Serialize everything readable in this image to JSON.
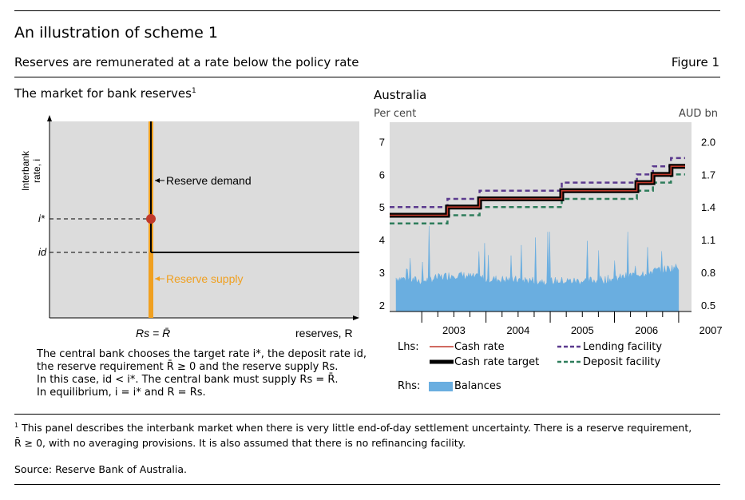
{
  "header": {
    "title": "An illustration of scheme 1",
    "subtitle": "Reserves are remunerated at a rate below the policy rate",
    "figure_label": "Figure 1"
  },
  "left_panel": {
    "title": "The market for bank reserves",
    "title_sup": "1",
    "y_axis_label_line1": "Interbank",
    "y_axis_label_line2": "rate, i",
    "istar_label": "i*",
    "id_label": "id",
    "reserve_demand_label": "Reserve demand",
    "reserve_supply_label": "Reserve supply",
    "rs_label": "Rs = R̄",
    "x_axis_label": "reserves, R",
    "demand_color": "#000000",
    "supply_color": "#f0a020",
    "equilibrium_color": "#c0392b",
    "caption_lines": [
      "The central bank chooses the target rate i*, the deposit rate id,",
      "the reserve requirement R̄ ≥ 0 and the reserve supply Rs.",
      "In this case, id < i*. The central bank must supply Rs = R̄.",
      "In equilibrium, i = i* and R = Rs."
    ]
  },
  "right_panel": {
    "title": "Australia",
    "left_unit": "Per cent",
    "right_unit": "AUD bn",
    "legend": {
      "lhs_label": "Lhs:",
      "rhs_label": "Rhs:",
      "items": [
        {
          "name": "Cash rate",
          "color": "#c0392b",
          "style": "thin"
        },
        {
          "name": "Cash rate target",
          "color": "#000000",
          "style": "thick"
        },
        {
          "name": "Lending facility",
          "color": "#5b3a8e",
          "style": "dashed"
        },
        {
          "name": "Deposit facility",
          "color": "#2e7d5b",
          "style": "dashed"
        },
        {
          "name": "Balances",
          "color": "#6aaee0",
          "style": "area"
        }
      ]
    }
  },
  "chart_data": {
    "type": "line",
    "title": "Australia",
    "x_range": [
      2002.5,
      2007.2
    ],
    "x_ticks": [
      "2003",
      "2004",
      "2005",
      "2006",
      "2007"
    ],
    "left_axis": {
      "label": "Per cent",
      "ticks": [
        2,
        3,
        4,
        5,
        6,
        7
      ],
      "range": [
        1.8,
        7.6
      ]
    },
    "right_axis": {
      "label": "AUD bn",
      "ticks": [
        "0.5",
        "0.8",
        "1.1",
        "1.4",
        "1.7",
        "2.0"
      ],
      "range": [
        0.5,
        2.0
      ]
    },
    "grid": true,
    "series": [
      {
        "name": "Cash rate target",
        "axis": "left",
        "x": [
          2002.5,
          2003.4,
          2003.4,
          2003.9,
          2003.9,
          2005.18,
          2005.18,
          2006.35,
          2006.35,
          2006.6,
          2006.6,
          2006.88,
          2006.88,
          2007.1
        ],
        "y": [
          4.75,
          4.75,
          5.0,
          5.0,
          5.25,
          5.25,
          5.5,
          5.5,
          5.75,
          5.75,
          6.0,
          6.0,
          6.25,
          6.25
        ]
      },
      {
        "name": "Cash rate",
        "axis": "left",
        "x": [
          2002.5,
          2003.4,
          2003.4,
          2003.9,
          2003.9,
          2005.18,
          2005.18,
          2006.35,
          2006.35,
          2006.6,
          2006.6,
          2006.88,
          2006.88,
          2007.1
        ],
        "y": [
          4.75,
          4.75,
          5.0,
          5.0,
          5.25,
          5.25,
          5.5,
          5.5,
          5.75,
          5.75,
          6.0,
          6.0,
          6.25,
          6.25
        ]
      },
      {
        "name": "Lending facility",
        "axis": "left",
        "x": [
          2002.5,
          2003.4,
          2003.4,
          2003.9,
          2003.9,
          2005.18,
          2005.18,
          2006.35,
          2006.35,
          2006.6,
          2006.6,
          2006.88,
          2006.88,
          2007.1
        ],
        "y": [
          5.0,
          5.0,
          5.25,
          5.25,
          5.5,
          5.5,
          5.75,
          5.75,
          6.0,
          6.0,
          6.25,
          6.25,
          6.5,
          6.5
        ]
      },
      {
        "name": "Deposit facility",
        "axis": "left",
        "x": [
          2002.5,
          2003.4,
          2003.4,
          2003.9,
          2003.9,
          2005.18,
          2005.18,
          2006.35,
          2006.35,
          2006.6,
          2006.6,
          2006.88,
          2006.88,
          2007.1
        ],
        "y": [
          4.5,
          4.5,
          4.75,
          4.75,
          5.0,
          5.0,
          5.25,
          5.25,
          5.5,
          5.5,
          5.75,
          5.75,
          6.0,
          6.0
        ]
      },
      {
        "name": "Balances",
        "axis": "right",
        "type": "area",
        "x": [
          2002.6,
          2003.0,
          2003.5,
          2004.0,
          2004.5,
          2005.0,
          2005.5,
          2006.0,
          2006.5,
          2007.0
        ],
        "y": [
          0.75,
          0.72,
          0.78,
          0.74,
          0.73,
          0.72,
          0.72,
          0.74,
          0.8,
          0.85
        ]
      }
    ]
  },
  "footnote": {
    "mark": "1",
    "text": "This panel describes the interbank market when there is very little end-of-day settlement uncertainty. There is a reserve requirement,",
    "text2": "R̄ ≥ 0, with no averaging provisions. It is also assumed that there is no refinancing facility."
  },
  "source": "Source: Reserve Bank of Australia."
}
